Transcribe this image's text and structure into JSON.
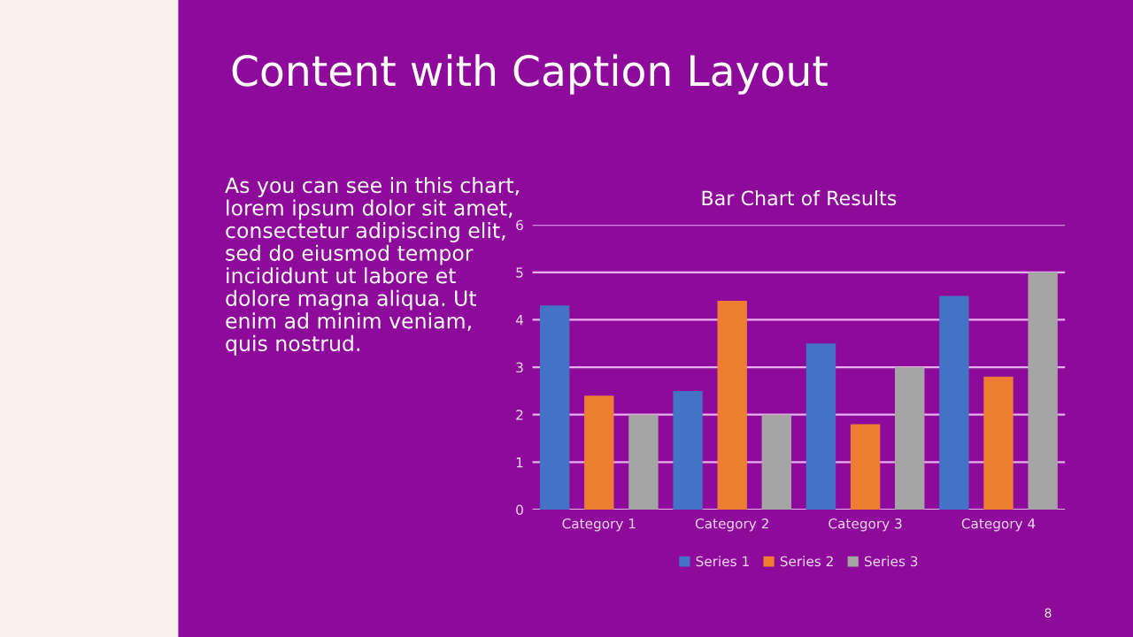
{
  "chart_data": {
    "type": "bar",
    "title": "Bar Chart of Results",
    "categories": [
      "Category 1",
      "Category 2",
      "Category 3",
      "Category 4"
    ],
    "series": [
      {
        "name": "Series 1",
        "color": "#4472c4",
        "values": [
          4.3,
          2.5,
          3.5,
          4.5
        ]
      },
      {
        "name": "Series 2",
        "color": "#ed7d31",
        "values": [
          2.4,
          4.4,
          1.8,
          2.8
        ]
      },
      {
        "name": "Series 3",
        "color": "#a5a5a5",
        "values": [
          2,
          2,
          3,
          5
        ]
      }
    ],
    "ylim": [
      0,
      6
    ],
    "yticks": [
      0,
      1,
      2,
      3,
      4,
      5,
      6
    ],
    "grid": "y",
    "legend": "bottom",
    "annotations": [
      "Content with Caption Layout",
      "As you can see in this chart,\nlorem ipsum dolor sit amet,\nconsectetur adipiscing elit,\nsed do eiusmod tempor\nincididunt ut labore et\ndolore magna aliqua. Ut\nenim ad minim veniam,\nquis nostrud.",
      "8"
    ]
  }
}
